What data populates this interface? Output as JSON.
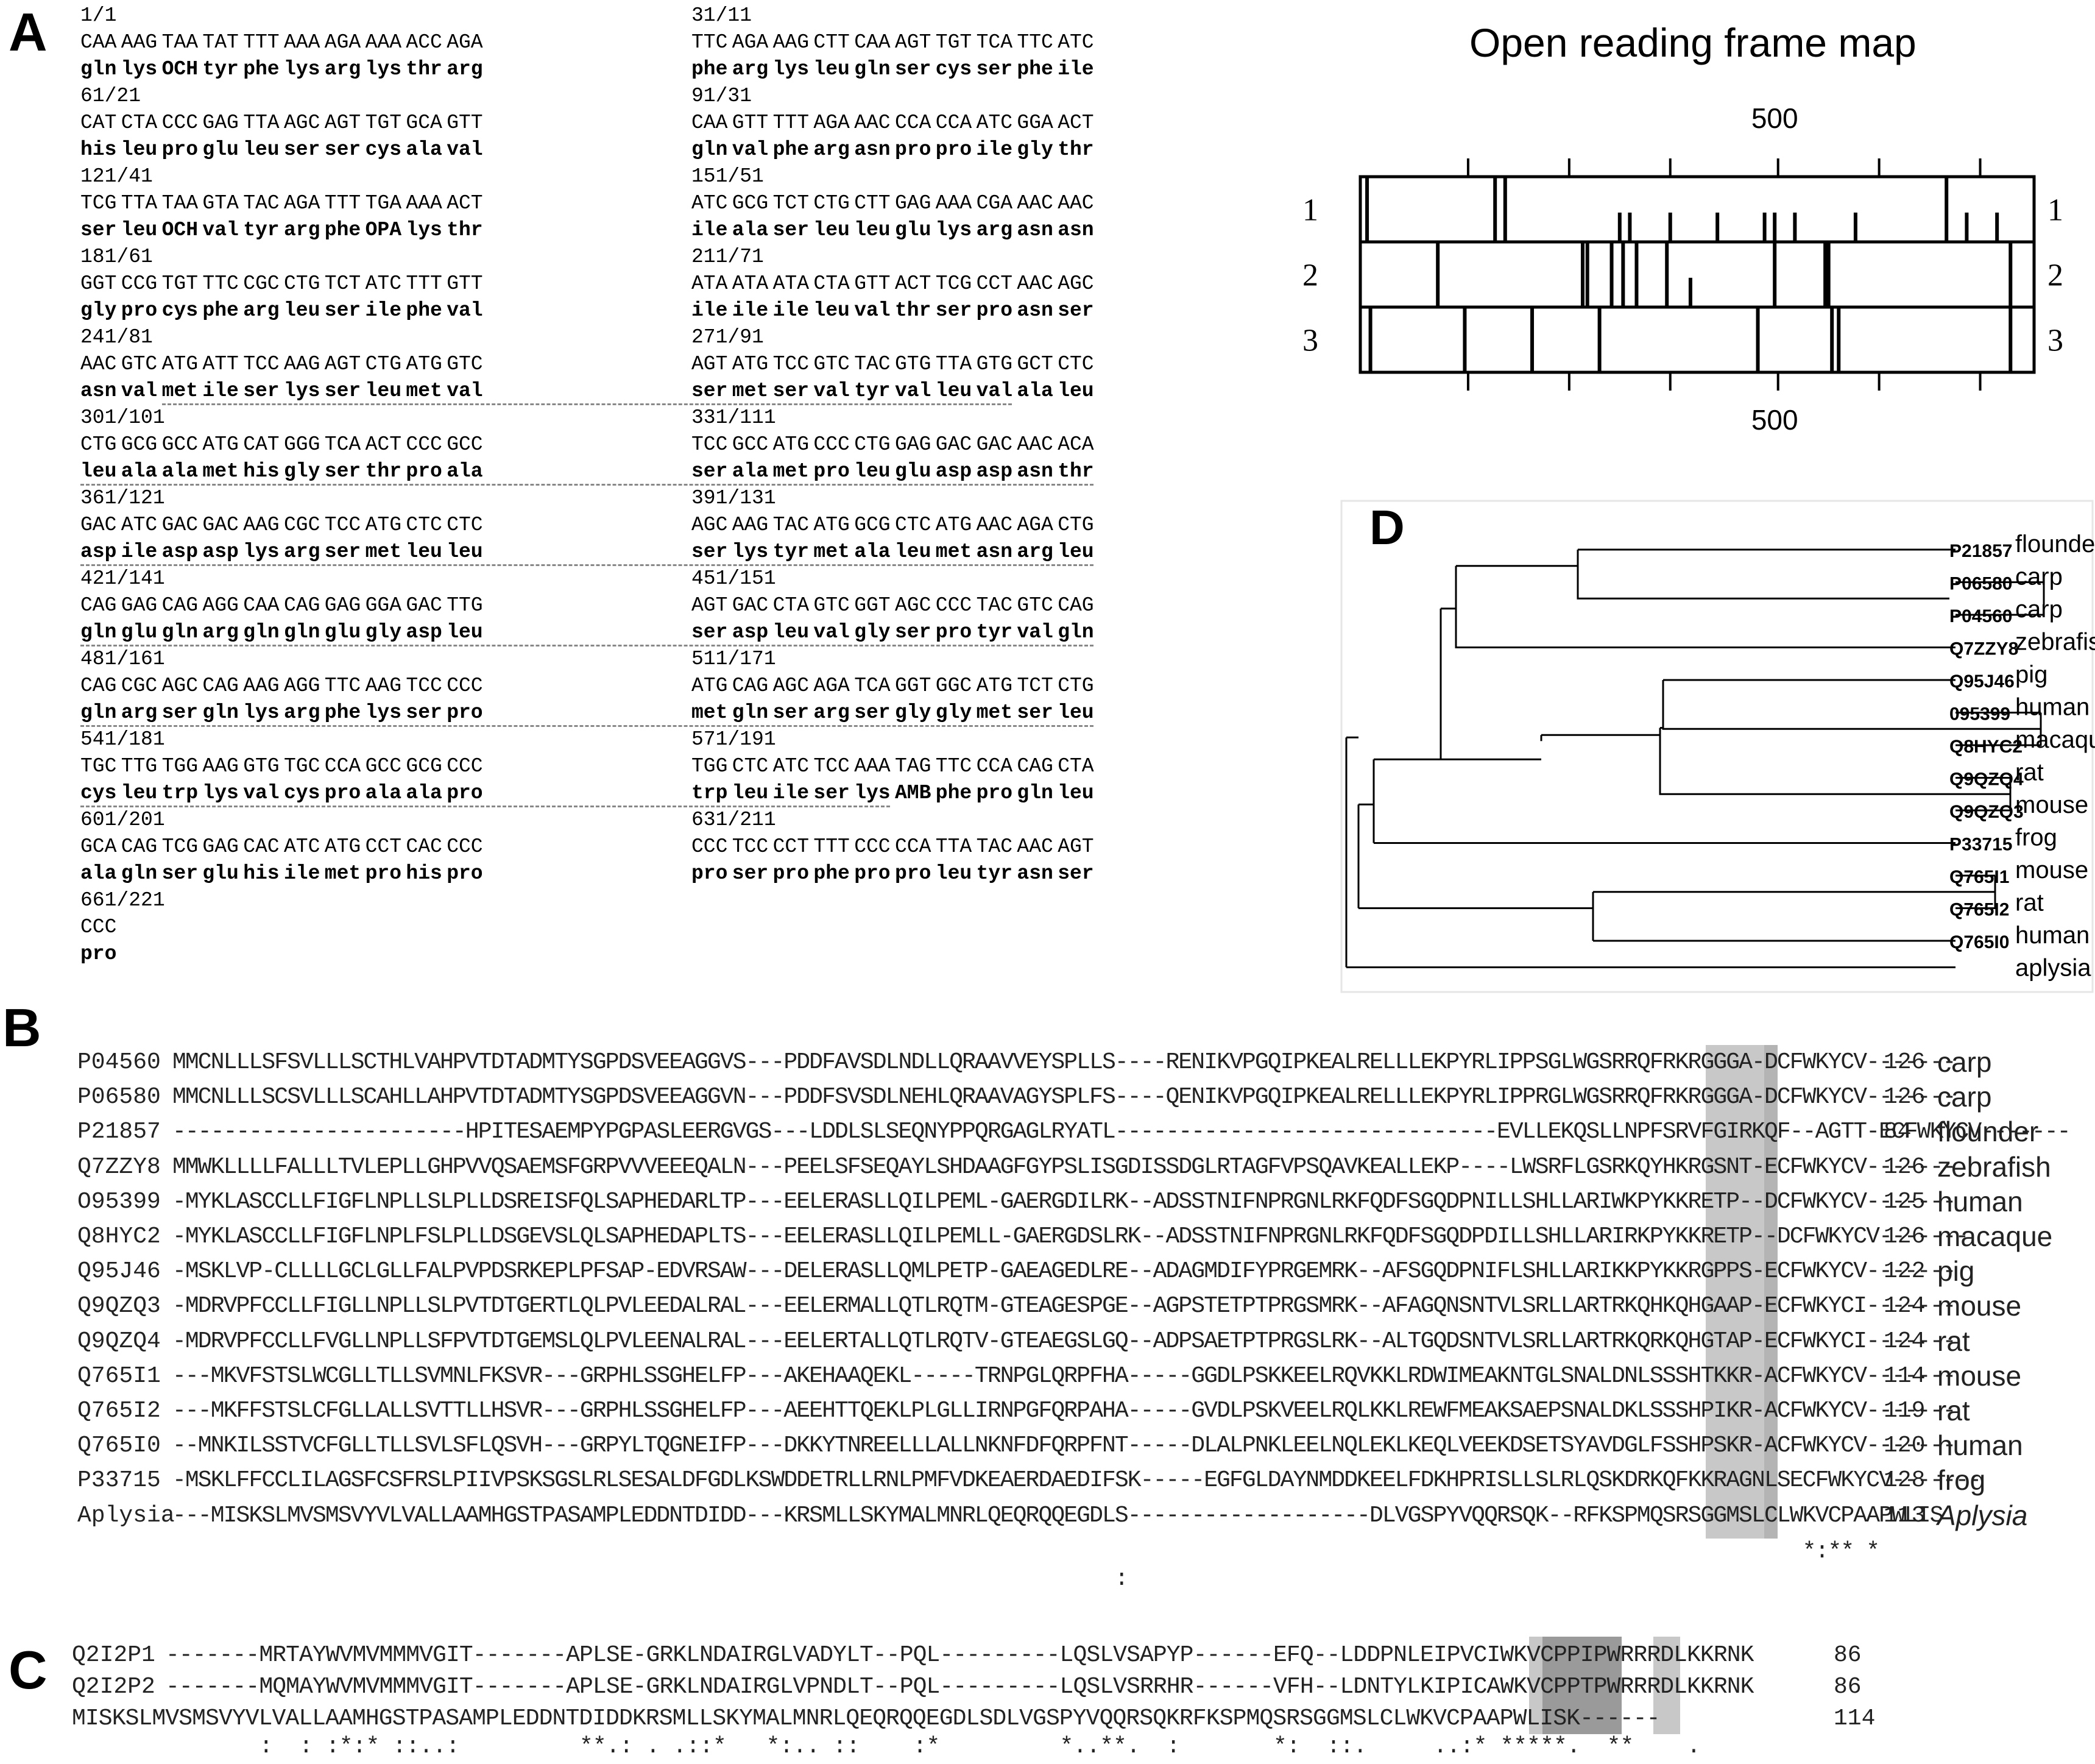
{
  "panels": {
    "A": "A",
    "B": "B",
    "C": "C",
    "D": "D"
  },
  "panel_a": {
    "left_positions": [
      "1/1",
      "61/21",
      "121/41",
      "181/61",
      "241/81",
      "301/101",
      "361/121",
      "421/141",
      "481/161",
      "541/181",
      "601/201",
      "661/221"
    ],
    "right_positions": [
      "31/11",
      "91/31",
      "151/51",
      "211/71",
      "271/91",
      "331/111",
      "391/131",
      "451/151",
      "511/171",
      "571/191",
      "631/211"
    ],
    "nuc_rows": [
      [
        "CAA",
        "AAG",
        "TAA",
        "TAT",
        "TTT",
        "AAA",
        "AGA",
        "AAA",
        "ACC",
        "AGA",
        "TTC",
        "AGA",
        "AAG",
        "CTT",
        "CAA",
        "AGT",
        "TGT",
        "TCA",
        "TTC",
        "ATC"
      ],
      [
        "CAT",
        "CTA",
        "CCC",
        "GAG",
        "TTA",
        "AGC",
        "AGT",
        "TGT",
        "GCA",
        "GTT",
        "CAA",
        "GTT",
        "TTT",
        "AGA",
        "AAC",
        "CCA",
        "CCA",
        "ATC",
        "GGA",
        "ACT"
      ],
      [
        "TCG",
        "TTA",
        "TAA",
        "GTA",
        "TAC",
        "AGA",
        "TTT",
        "TGA",
        "AAA",
        "ACT",
        "ATC",
        "GCG",
        "TCT",
        "CTG",
        "CTT",
        "GAG",
        "AAA",
        "CGA",
        "AAC",
        "AAC"
      ],
      [
        "GGT",
        "CCG",
        "TGT",
        "TTC",
        "CGC",
        "CTG",
        "TCT",
        "ATC",
        "TTT",
        "GTT",
        "ATA",
        "ATA",
        "ATA",
        "CTA",
        "GTT",
        "ACT",
        "TCG",
        "CCT",
        "AAC",
        "AGC"
      ],
      [
        "AAC",
        "GTC",
        "ATG",
        "ATT",
        "TCC",
        "AAG",
        "AGT",
        "CTG",
        "ATG",
        "GTC",
        "AGT",
        "ATG",
        "TCC",
        "GTC",
        "TAC",
        "GTG",
        "TTA",
        "GTG",
        "GCT",
        "CTC"
      ],
      [
        "CTG",
        "GCG",
        "GCC",
        "ATG",
        "CAT",
        "GGG",
        "TCA",
        "ACT",
        "CCC",
        "GCC",
        "TCC",
        "GCC",
        "ATG",
        "CCC",
        "CTG",
        "GAG",
        "GAC",
        "GAC",
        "AAC",
        "ACA"
      ],
      [
        "GAC",
        "ATC",
        "GAC",
        "GAC",
        "AAG",
        "CGC",
        "TCC",
        "ATG",
        "CTC",
        "CTC",
        "AGC",
        "AAG",
        "TAC",
        "ATG",
        "GCG",
        "CTC",
        "ATG",
        "AAC",
        "AGA",
        "CTG"
      ],
      [
        "CAG",
        "GAG",
        "CAG",
        "AGG",
        "CAA",
        "CAG",
        "GAG",
        "GGA",
        "GAC",
        "TTG",
        "AGT",
        "GAC",
        "CTA",
        "GTC",
        "GGT",
        "AGC",
        "CCC",
        "TAC",
        "GTC",
        "CAG"
      ],
      [
        "CAG",
        "CGC",
        "AGC",
        "CAG",
        "AAG",
        "AGG",
        "TTC",
        "AAG",
        "TCC",
        "CCC",
        "ATG",
        "CAG",
        "AGC",
        "AGA",
        "TCA",
        "GGT",
        "GGC",
        "ATG",
        "TCT",
        "CTG"
      ],
      [
        "TGC",
        "TTG",
        "TGG",
        "AAG",
        "GTG",
        "TGC",
        "CCA",
        "GCC",
        "GCG",
        "CCC",
        "TGG",
        "CTC",
        "ATC",
        "TCC",
        "AAA",
        "TAG",
        "TTC",
        "CCA",
        "CAG",
        "CTA"
      ],
      [
        "GCA",
        "CAG",
        "TCG",
        "GAG",
        "CAC",
        "ATC",
        "ATG",
        "CCT",
        "CAC",
        "CCC",
        "CCC",
        "TCC",
        "CCT",
        "TTT",
        "CCC",
        "CCA",
        "TTA",
        "TAC",
        "AAC",
        "AGT"
      ],
      [
        "CCC"
      ]
    ],
    "aa_rows": [
      [
        "gln",
        "lys",
        "OCH",
        "tyr",
        "phe",
        "lys",
        "arg",
        "lys",
        "thr",
        "arg",
        "phe",
        "arg",
        "lys",
        "leu",
        "gln",
        "ser",
        "cys",
        "ser",
        "phe",
        "ile"
      ],
      [
        "his",
        "leu",
        "pro",
        "glu",
        "leu",
        "ser",
        "ser",
        "cys",
        "ala",
        "val",
        "gln",
        "val",
        "phe",
        "arg",
        "asn",
        "pro",
        "pro",
        "ile",
        "gly",
        "thr"
      ],
      [
        "ser",
        "leu",
        "OCH",
        "val",
        "tyr",
        "arg",
        "phe",
        "OPA",
        "lys",
        "thr",
        "ile",
        "ala",
        "ser",
        "leu",
        "leu",
        "glu",
        "lys",
        "arg",
        "asn",
        "asn"
      ],
      [
        "gly",
        "pro",
        "cys",
        "phe",
        "arg",
        "leu",
        "ser",
        "ile",
        "phe",
        "val",
        "ile",
        "ile",
        "ile",
        "leu",
        "val",
        "thr",
        "ser",
        "pro",
        "asn",
        "ser"
      ],
      [
        "asn",
        "val",
        "met",
        "ile",
        "ser",
        "lys",
        "ser",
        "leu",
        "met",
        "val",
        "ser",
        "met",
        "ser",
        "val",
        "tyr",
        "val",
        "leu",
        "val",
        "ala",
        "leu"
      ],
      [
        "leu",
        "ala",
        "ala",
        "met",
        "his",
        "gly",
        "ser",
        "thr",
        "pro",
        "ala",
        "ser",
        "ala",
        "met",
        "pro",
        "leu",
        "glu",
        "asp",
        "asp",
        "asn",
        "thr"
      ],
      [
        "asp",
        "ile",
        "asp",
        "asp",
        "lys",
        "arg",
        "ser",
        "met",
        "leu",
        "leu",
        "ser",
        "lys",
        "tyr",
        "met",
        "ala",
        "leu",
        "met",
        "asn",
        "arg",
        "leu"
      ],
      [
        "gln",
        "glu",
        "gln",
        "arg",
        "gln",
        "gln",
        "glu",
        "gly",
        "asp",
        "leu",
        "ser",
        "asp",
        "leu",
        "val",
        "gly",
        "ser",
        "pro",
        "tyr",
        "val",
        "gln"
      ],
      [
        "gln",
        "arg",
        "ser",
        "gln",
        "lys",
        "arg",
        "phe",
        "lys",
        "ser",
        "pro",
        "met",
        "gln",
        "ser",
        "arg",
        "ser",
        "gly",
        "gly",
        "met",
        "ser",
        "leu"
      ],
      [
        "cys",
        "leu",
        "trp",
        "lys",
        "val",
        "cys",
        "pro",
        "ala",
        "ala",
        "pro",
        "trp",
        "leu",
        "ile",
        "ser",
        "lys",
        "AMB",
        "phe",
        "pro",
        "gln",
        "leu"
      ],
      [
        "ala",
        "gln",
        "ser",
        "glu",
        "his",
        "ile",
        "met",
        "pro",
        "his",
        "pro",
        "pro",
        "ser",
        "pro",
        "phe",
        "pro",
        "pro",
        "leu",
        "tyr",
        "asn",
        "ser"
      ],
      [
        "pro"
      ]
    ],
    "underline_codons": [
      0,
      0,
      0,
      0,
      18,
      20,
      20,
      20,
      20,
      15,
      0,
      0
    ]
  },
  "orf_map": {
    "title": "Open reading frame map",
    "top_tick_label": "500",
    "bottom_tick_label": "500",
    "frames": [
      "1",
      "2",
      "3"
    ],
    "frame1_markers": [
      {
        "pos": 0.01,
        "full": true
      },
      {
        "pos": 0.2,
        "full": true
      },
      {
        "pos": 0.215,
        "full": true
      },
      {
        "pos": 0.385,
        "full": false
      },
      {
        "pos": 0.4,
        "full": false
      },
      {
        "pos": 0.46,
        "full": false
      },
      {
        "pos": 0.53,
        "full": false
      },
      {
        "pos": 0.6,
        "full": false
      },
      {
        "pos": 0.615,
        "full": false
      },
      {
        "pos": 0.645,
        "full": false
      },
      {
        "pos": 0.735,
        "full": false
      },
      {
        "pos": 0.87,
        "full": true
      },
      {
        "pos": 0.9,
        "full": false
      },
      {
        "pos": 0.945,
        "full": false
      }
    ],
    "frame2_markers": [
      {
        "pos": 0.115,
        "full": true
      },
      {
        "pos": 0.33,
        "full": true
      },
      {
        "pos": 0.337,
        "full": true
      },
      {
        "pos": 0.373,
        "full": true
      },
      {
        "pos": 0.39,
        "full": true
      },
      {
        "pos": 0.41,
        "full": true
      },
      {
        "pos": 0.455,
        "full": true
      },
      {
        "pos": 0.49,
        "full": false
      },
      {
        "pos": 0.615,
        "full": true
      },
      {
        "pos": 0.69,
        "full": true
      },
      {
        "pos": 0.695,
        "full": true
      },
      {
        "pos": 0.965,
        "full": true
      }
    ],
    "frame3_markers": [
      {
        "pos": 0.015,
        "full": true
      },
      {
        "pos": 0.155,
        "full": true
      },
      {
        "pos": 0.255,
        "full": true
      },
      {
        "pos": 0.355,
        "full": true
      },
      {
        "pos": 0.59,
        "full": true
      },
      {
        "pos": 0.7,
        "full": true
      },
      {
        "pos": 0.71,
        "full": true
      },
      {
        "pos": 0.965,
        "full": true
      }
    ],
    "top_ticks": [
      0.16,
      0.31,
      0.46,
      0.62,
      0.77,
      0.92
    ],
    "bottom_ticks": [
      0.16,
      0.31,
      0.46,
      0.62,
      0.77,
      0.92
    ]
  },
  "tree": {
    "leaves": [
      {
        "id": "P21857",
        "name": "flounder"
      },
      {
        "id": "P06580",
        "name": "carp"
      },
      {
        "id": "P04560",
        "name": "carp"
      },
      {
        "id": "Q7ZZY8",
        "name": "zebrafish"
      },
      {
        "id": "Q95J46",
        "name": "pig"
      },
      {
        "id": "095399",
        "name": "human"
      },
      {
        "id": "Q8HYC2",
        "name": "macaque"
      },
      {
        "id": "Q9QZQ4",
        "name": "rat"
      },
      {
        "id": "Q9QZQ3",
        "name": "mouse"
      },
      {
        "id": "P33715",
        "name": "frog"
      },
      {
        "id": "Q765I1",
        "name": "mouse"
      },
      {
        "id": "Q765I2",
        "name": "rat"
      },
      {
        "id": "Q765I0",
        "name": "human"
      },
      {
        "id": "",
        "name": "aplysia"
      }
    ]
  },
  "panel_b": {
    "rows": [
      {
        "id": "P04560",
        "seq": "MMCNLLLSFSVLLLSCTHLVAHPVTDTADMTYSGPDSVEEAGGVS---PDDFAVSDLNDLLQRAAVVEYSPLLS----RENIKVPGQIPKEALRELLLEKPYRLIPPSGLWGSRRQFRKRGGGA-DCFWKYCV-------",
        "num": "126",
        "species": "carp"
      },
      {
        "id": "P06580",
        "seq": "MMCNLLLSCSVLLLSCAHLLAHPVTDTADMTYSGPDSVEEAGGVN---PDDFSVSDLNEHLQRAAVAGYSPLFS----QENIKVPGQIPKEALRELLLEKPYRLIPPRGLWGSRRQFRKRGGGA-DCFWKYCV-------",
        "num": "126",
        "species": "carp"
      },
      {
        "id": "P21857",
        "seq": "-----------------------HPITESAEMPYPGPASLEERGVGS---LDDLSLSEQNYPPQRGAGLRYATL------------------------------EVLLEKQSLLNPFSRVFGIRKQF--AGTT-ECFWKYCV-------",
        "num": "84",
        "species": "flounder"
      },
      {
        "id": "Q7ZZY8",
        "seq": "MMWKLLLLFALLLTVLEPLLGHPVVQSAEMSFGRPVVVEEEQALN---PEELSFSEQAYLSHDAAGFGYPSLISGDISSDGLRTAGFVPSQAVKEALLEKP----LWSRFLGSRKQYHKRGSNT-ECFWKYCV-------",
        "num": "126",
        "species": "zebrafish"
      },
      {
        "id": "O95399",
        "seq": "-MYKLASCCLLFIGFLNPLLSLPLLDSREISFQLSAPHEDARLTP---EELERASLLQILPEML-GAERGDILRK--ADSSTNIFNPRGNLRKFQDFSGQDPNILLSHLLARIWKPYKKRETP--DCFWKYCV-------",
        "num": "125",
        "species": "human"
      },
      {
        "id": "Q8HYC2",
        "seq": "-MYKLASCCLLFIGFLNPLFSLPLLDSGEVSLQLSAPHEDAPLTS---EELERASLLQILPEMLL-GAERGDSLRK--ADSSTNIFNPRGNLRKFQDFSGQDPDILLSHLLARIRKPYKKRETP--DCFWKYCV-------",
        "num": "126",
        "species": "macaque"
      },
      {
        "id": "Q95J46",
        "seq": "-MSKLVP-CLLLLGCLGLLFALPVPDSRKEPLPFSAP-EDVRSAW---DELERASLLQMLPETP-GAEAGEDLRE--ADAGMDIFYPRGEMRK--AFSGQDPNIFLSHLLARIKKPYKKRGPPS-ECFWKYCV-------",
        "num": "122",
        "species": "pig"
      },
      {
        "id": "Q9QZQ3",
        "seq": "-MDRVPFCCLLFIGLLNPLLSLPVTDTGERTLQLPVLEEDALRAL---EELERMALLQTLRQTM-GTEAGESPGE--AGPSTETPTPRGSMRK--AFAGQNSNTVLSRLLARTRKQHKQHGAAP-ECFWKYCI-------",
        "num": "124",
        "species": "mouse"
      },
      {
        "id": "Q9QZQ4",
        "seq": "-MDRVPFCCLLFVGLLNPLLSFPVTDTGEMSLQLPVLEENALRAL---EELERTALLQTLRQTV-GTEAEGSLGQ--ADPSAETPTPRGSLRK--ALTGQDSNTVLSRLLARTRKQRKQHGTAP-ECFWKYCI-------",
        "num": "124",
        "species": "rat"
      },
      {
        "id": "Q765I1",
        "seq": "---MKVFSTSLWCGLLTLLSVMNLFKSVR---GRPHLSSGHELFP---AKEHAAQEKL-----TRNPGLQRPFHA-----GGDLPSKKEELRQVKKLRDWIMEAKNTGLSNALDNLSSSHTKKR-ACFWKYCV-------",
        "num": "114",
        "species": "mouse"
      },
      {
        "id": "Q765I2",
        "seq": "---MKFFSTSLCFGLLALLSVTTLLHSVR---GRPHLSSGHELFP---AEEHTTQEKLPLGLLIRNPGFQRPAHA-----GVDLPSKVEELRQLKKLREWFMEAKSAEPSNALDKLSSSHPIKR-ACFWKYCV-------",
        "num": "119",
        "species": "rat"
      },
      {
        "id": "Q765I0",
        "seq": "--MNKILSSTVCFGLLTLLSVLSFLQSVH---GRPYLTQGNEIFP---DKKYTNREELLLALLNKNFDFQRPFNT-----DLALPNKLEELNQLEKLKEQLVEEKDSETSYAVDGLFSSHPSKR-ACFWKYCV-------",
        "num": "120",
        "species": "human"
      },
      {
        "id": "P33715",
        "seq": "-MSKLFFCCLILAGSFCSFRSLPIIVPSKSGSLRLSESALDFGDLKSWDDETRLLRNLPMFVDKEAERDAEDIFSK-----EGFGLDAYNMDDKEELFDKHPRISLLSLRLQSKDRKQFKKRAGNLSECFWKYCV-------",
        "num": "128",
        "species": "frog"
      },
      {
        "id": "Aplysia",
        "seq": "---MISKSLMVSMSVYVLVALLAAMHGSTPASAMPLEDDNTDIDD---KRSMLLSKYMALMNRLQEQRQQEGDLS-------------------DLVGSPYVQQRSQK--RFKSPMQSRSGGMSLCLWKVCPAAPWLIS",
        "num": "113",
        "species": "Aplysia"
      }
    ],
    "cons1": "                                                                                                                                *:** *       ",
    "cons2": "                                                                          :                                                                  "
  },
  "panel_c": {
    "rows": [
      {
        "id": "Q2I2P1",
        "seq": "-------MRTAYWVMVMMMVGIT-------APLSE-GRKLNDAIRGLVADYLT--PQL---------LQSLVSAPYP------EFQ--LDDPNLEIPVCIWKVCPPIPWRRRDLKKRNK",
        "num": "86"
      },
      {
        "id": "Q2I2P2",
        "seq": "-------MQMAYWVMVMMMVGIT-------APLSE-GRKLNDAIRGLVPNDLT--PQL---------LQSLVSRRHR------VFH--LDNTYLKIPICAWKVCPPTPWRRRDLKKRNK",
        "num": "86"
      },
      {
        "id": "Aplysia",
        "seq": "MISKSLMVSMSVYVLVALLAAMHGSTPASAMPLEDDNTDIDDKRSMLLSKYMALMNRLQEQRQQEGDLSDLVGSPYVQQRSQKRFKSPMQSRSGGMSLCLWKVCPAAPWLISK------",
        "num": "114"
      }
    ],
    "cons": "       :  : :*:* ::..:         **.: . .::*   *:.. ::    :*         *..**.  :       *:  ::.     ..:* *****.  **    .    "
  }
}
